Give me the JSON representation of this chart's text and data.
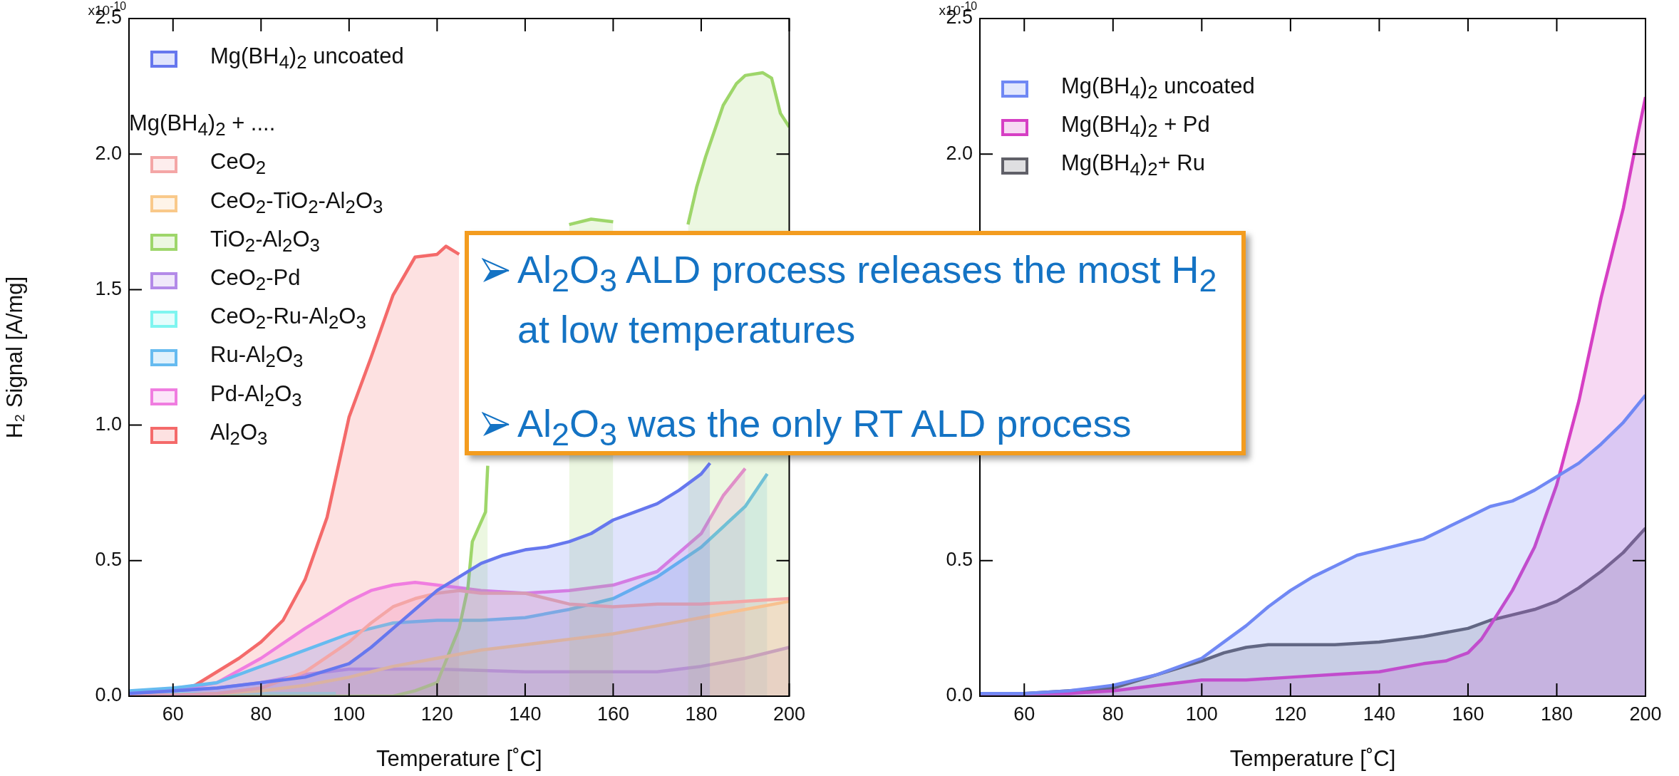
{
  "chart_data": [
    {
      "type": "area",
      "xlabel": "Temperature [˚C]",
      "ylabel": "H₂ Signal [A/mg]",
      "legend_title": "Mg(BH$_{4}$)$_{2}$ + ....",
      "legend": "top left",
      "xlim": [
        50,
        200
      ],
      "xticks": [
        60,
        80,
        100,
        120,
        140,
        160,
        180,
        200
      ],
      "ylim": [
        0,
        2.5
      ],
      "yticks": [
        {
          "value": 0,
          "label": "0.0"
        },
        {
          "value": 0.5,
          "label": "0.5"
        },
        {
          "value": 1,
          "label": "1.0"
        },
        {
          "value": 1.5,
          "label": "1.5"
        },
        {
          "value": 2,
          "label": "2.0"
        },
        {
          "value": 2.5,
          "label": "2.5"
        }
      ],
      "annotations": [
        "x10$^{-10}$",
        "Al$_{2}$O$_{3}$ ALD process releases the most H$_{2}$ at low temperatures",
        "Al$_{2}$O$_{3}$ was the only RT ALD process"
      ],
      "series": [
        {
          "name": "Mg(BH$_{4}$)$_{2}$ uncoated",
          "color": "#6677ee",
          "x": [
            50,
            60,
            70,
            80,
            90,
            100,
            105,
            110,
            115,
            120,
            125,
            130,
            135,
            140,
            145,
            150,
            155,
            160,
            165,
            170,
            175,
            180,
            182
          ],
          "values": [
            0.01,
            0.02,
            0.03,
            0.05,
            0.07,
            0.12,
            0.18,
            0.25,
            0.32,
            0.39,
            0.44,
            0.49,
            0.52,
            0.54,
            0.55,
            0.57,
            0.6,
            0.65,
            0.68,
            0.71,
            0.76,
            0.82,
            0.86
          ]
        },
        {
          "name": "CeO$_{2}$",
          "color": "#f4a6a6",
          "x": [
            50,
            70,
            80,
            90,
            100,
            105,
            110,
            115,
            120,
            125,
            130,
            140,
            150,
            160,
            170,
            180,
            190,
            200
          ],
          "values": [
            0,
            0.01,
            0.03,
            0.09,
            0.2,
            0.27,
            0.33,
            0.36,
            0.38,
            0.39,
            0.38,
            0.38,
            0.34,
            0.33,
            0.34,
            0.34,
            0.35,
            0.36
          ]
        },
        {
          "name": "CeO$_{2}$-TiO$_{2}$-Al$_{2}$O$_{3}$",
          "color": "#f9c98a",
          "x": [
            50,
            70,
            80,
            90,
            100,
            110,
            120,
            130,
            140,
            150,
            160,
            170,
            180,
            190,
            200
          ],
          "values": [
            0,
            0.01,
            0.02,
            0.04,
            0.07,
            0.11,
            0.14,
            0.17,
            0.19,
            0.21,
            0.23,
            0.26,
            0.29,
            0.32,
            0.35
          ]
        },
        {
          "name": "TiO$_{2}$-Al$_{2}$O$_{3}$",
          "color": "#9ed66a",
          "x": [
            50,
            70,
            90,
            110,
            115,
            120,
            125,
            127,
            128,
            131,
            131.5,
            140,
            150,
            155,
            160,
            165,
            170,
            177,
            179,
            181,
            185,
            188,
            190,
            194,
            196,
            198,
            200
          ],
          "values": [
            0,
            0,
            0,
            0,
            0.02,
            0.05,
            0.25,
            0.4,
            0.57,
            0.68,
            0.85,
            null,
            1.74,
            1.76,
            1.75,
            null,
            null,
            1.74,
            1.88,
            1.99,
            2.18,
            2.26,
            2.29,
            2.3,
            2.28,
            2.15,
            2.1
          ]
        },
        {
          "name": "CeO$_{2}$-Pd",
          "color": "#b38ae8",
          "x": [
            50,
            60,
            70,
            80,
            90,
            100,
            110,
            120,
            140,
            160,
            170,
            180,
            190,
            200
          ],
          "values": [
            0.01,
            0.02,
            0.03,
            0.05,
            0.08,
            0.1,
            0.1,
            0.1,
            0.09,
            0.09,
            0.09,
            0.11,
            0.14,
            0.18
          ]
        },
        {
          "name": "CeO$_{2}$-Ru-Al$_{2}$O$_{3}$",
          "color": "#7ff5f0",
          "x": [
            50,
            60,
            70,
            80,
            90,
            97
          ],
          "values": [
            0.01,
            0.01,
            0.01,
            0.01,
            0.01,
            0.01
          ]
        },
        {
          "name": "Ru-Al$_{2}$O$_{3}$",
          "color": "#66bbf0",
          "x": [
            50,
            60,
            70,
            80,
            90,
            100,
            110,
            120,
            130,
            140,
            150,
            160,
            170,
            180,
            190,
            195
          ],
          "values": [
            0.02,
            0.03,
            0.05,
            0.11,
            0.17,
            0.23,
            0.27,
            0.28,
            0.28,
            0.29,
            0.32,
            0.36,
            0.44,
            0.55,
            0.7,
            0.82
          ]
        },
        {
          "name": "Pd-Al$_{2}$O$_{3}$",
          "color": "#f07de0",
          "x": [
            50,
            60,
            70,
            80,
            90,
            100,
            105,
            110,
            115,
            120,
            125,
            130,
            140,
            150,
            160,
            170,
            180,
            185,
            190
          ],
          "values": [
            0.01,
            0.02,
            0.05,
            0.14,
            0.25,
            0.35,
            0.39,
            0.41,
            0.42,
            0.41,
            0.4,
            0.39,
            0.38,
            0.39,
            0.41,
            0.46,
            0.6,
            0.74,
            0.84
          ]
        },
        {
          "name": "Al$_{2}$O$_{3}$",
          "color": "#f46a6a",
          "x": [
            50,
            55,
            60,
            65,
            70,
            75,
            80,
            85,
            90,
            95,
            100,
            105,
            110,
            115,
            120,
            122,
            125
          ],
          "values": [
            0,
            0.01,
            0.02,
            0.04,
            0.09,
            0.14,
            0.2,
            0.28,
            0.43,
            0.66,
            1.03,
            1.25,
            1.48,
            1.62,
            1.63,
            1.66,
            1.63
          ]
        }
      ]
    },
    {
      "type": "area",
      "xlabel": "Temperature [˚C]",
      "legend": "top left",
      "xlim": [
        50,
        200
      ],
      "xticks": [
        60,
        80,
        100,
        120,
        140,
        160,
        180,
        200
      ],
      "ylim": [
        0,
        2.5
      ],
      "yticks": [
        {
          "value": 0,
          "label": "0.0"
        },
        {
          "value": 0.5,
          "label": "0.5"
        },
        {
          "value": 2,
          "label": "2.0"
        },
        {
          "value": 2.5,
          "label": "2.5"
        }
      ],
      "annotations": [
        "x10$^{-10}$"
      ],
      "series": [
        {
          "name": "Mg(BH$_{4}$)$_{2}$ uncoated",
          "color": "#7088f4",
          "x": [
            50,
            60,
            70,
            80,
            90,
            100,
            105,
            110,
            115,
            120,
            125,
            130,
            135,
            140,
            145,
            150,
            155,
            160,
            165,
            170,
            175,
            180,
            185,
            190,
            195,
            200
          ],
          "values": [
            0.01,
            0.01,
            0.02,
            0.04,
            0.08,
            0.14,
            0.2,
            0.26,
            0.33,
            0.39,
            0.44,
            0.48,
            0.52,
            0.54,
            0.56,
            0.58,
            0.62,
            0.66,
            0.7,
            0.72,
            0.76,
            0.81,
            0.86,
            0.93,
            1.01,
            1.11
          ]
        },
        {
          "name": "Mg(BH$_{4}$)$_{2}$ + Pd",
          "color": "#d63fc4",
          "x": [
            50,
            60,
            70,
            80,
            90,
            100,
            110,
            120,
            130,
            140,
            150,
            155,
            160,
            163,
            165,
            170,
            175,
            180,
            185,
            190,
            195,
            198,
            200
          ],
          "values": [
            0.01,
            0.01,
            0.01,
            0.02,
            0.04,
            0.06,
            0.06,
            0.07,
            0.08,
            0.09,
            0.12,
            0.13,
            0.16,
            0.21,
            0.26,
            0.39,
            0.55,
            0.78,
            1.09,
            1.47,
            1.8,
            2.05,
            2.21
          ]
        },
        {
          "name": "Mg(BH$_{4}$)$_{2}$+ Ru",
          "color": "#606068",
          "x": [
            50,
            60,
            70,
            80,
            90,
            100,
            105,
            110,
            115,
            120,
            130,
            140,
            150,
            160,
            165,
            170,
            175,
            180,
            185,
            190,
            195,
            200
          ],
          "values": [
            0.01,
            0.01,
            0.02,
            0.03,
            0.08,
            0.13,
            0.16,
            0.18,
            0.19,
            0.19,
            0.19,
            0.2,
            0.22,
            0.25,
            0.28,
            0.3,
            0.32,
            0.35,
            0.4,
            0.46,
            0.53,
            0.62
          ]
        }
      ]
    }
  ]
}
